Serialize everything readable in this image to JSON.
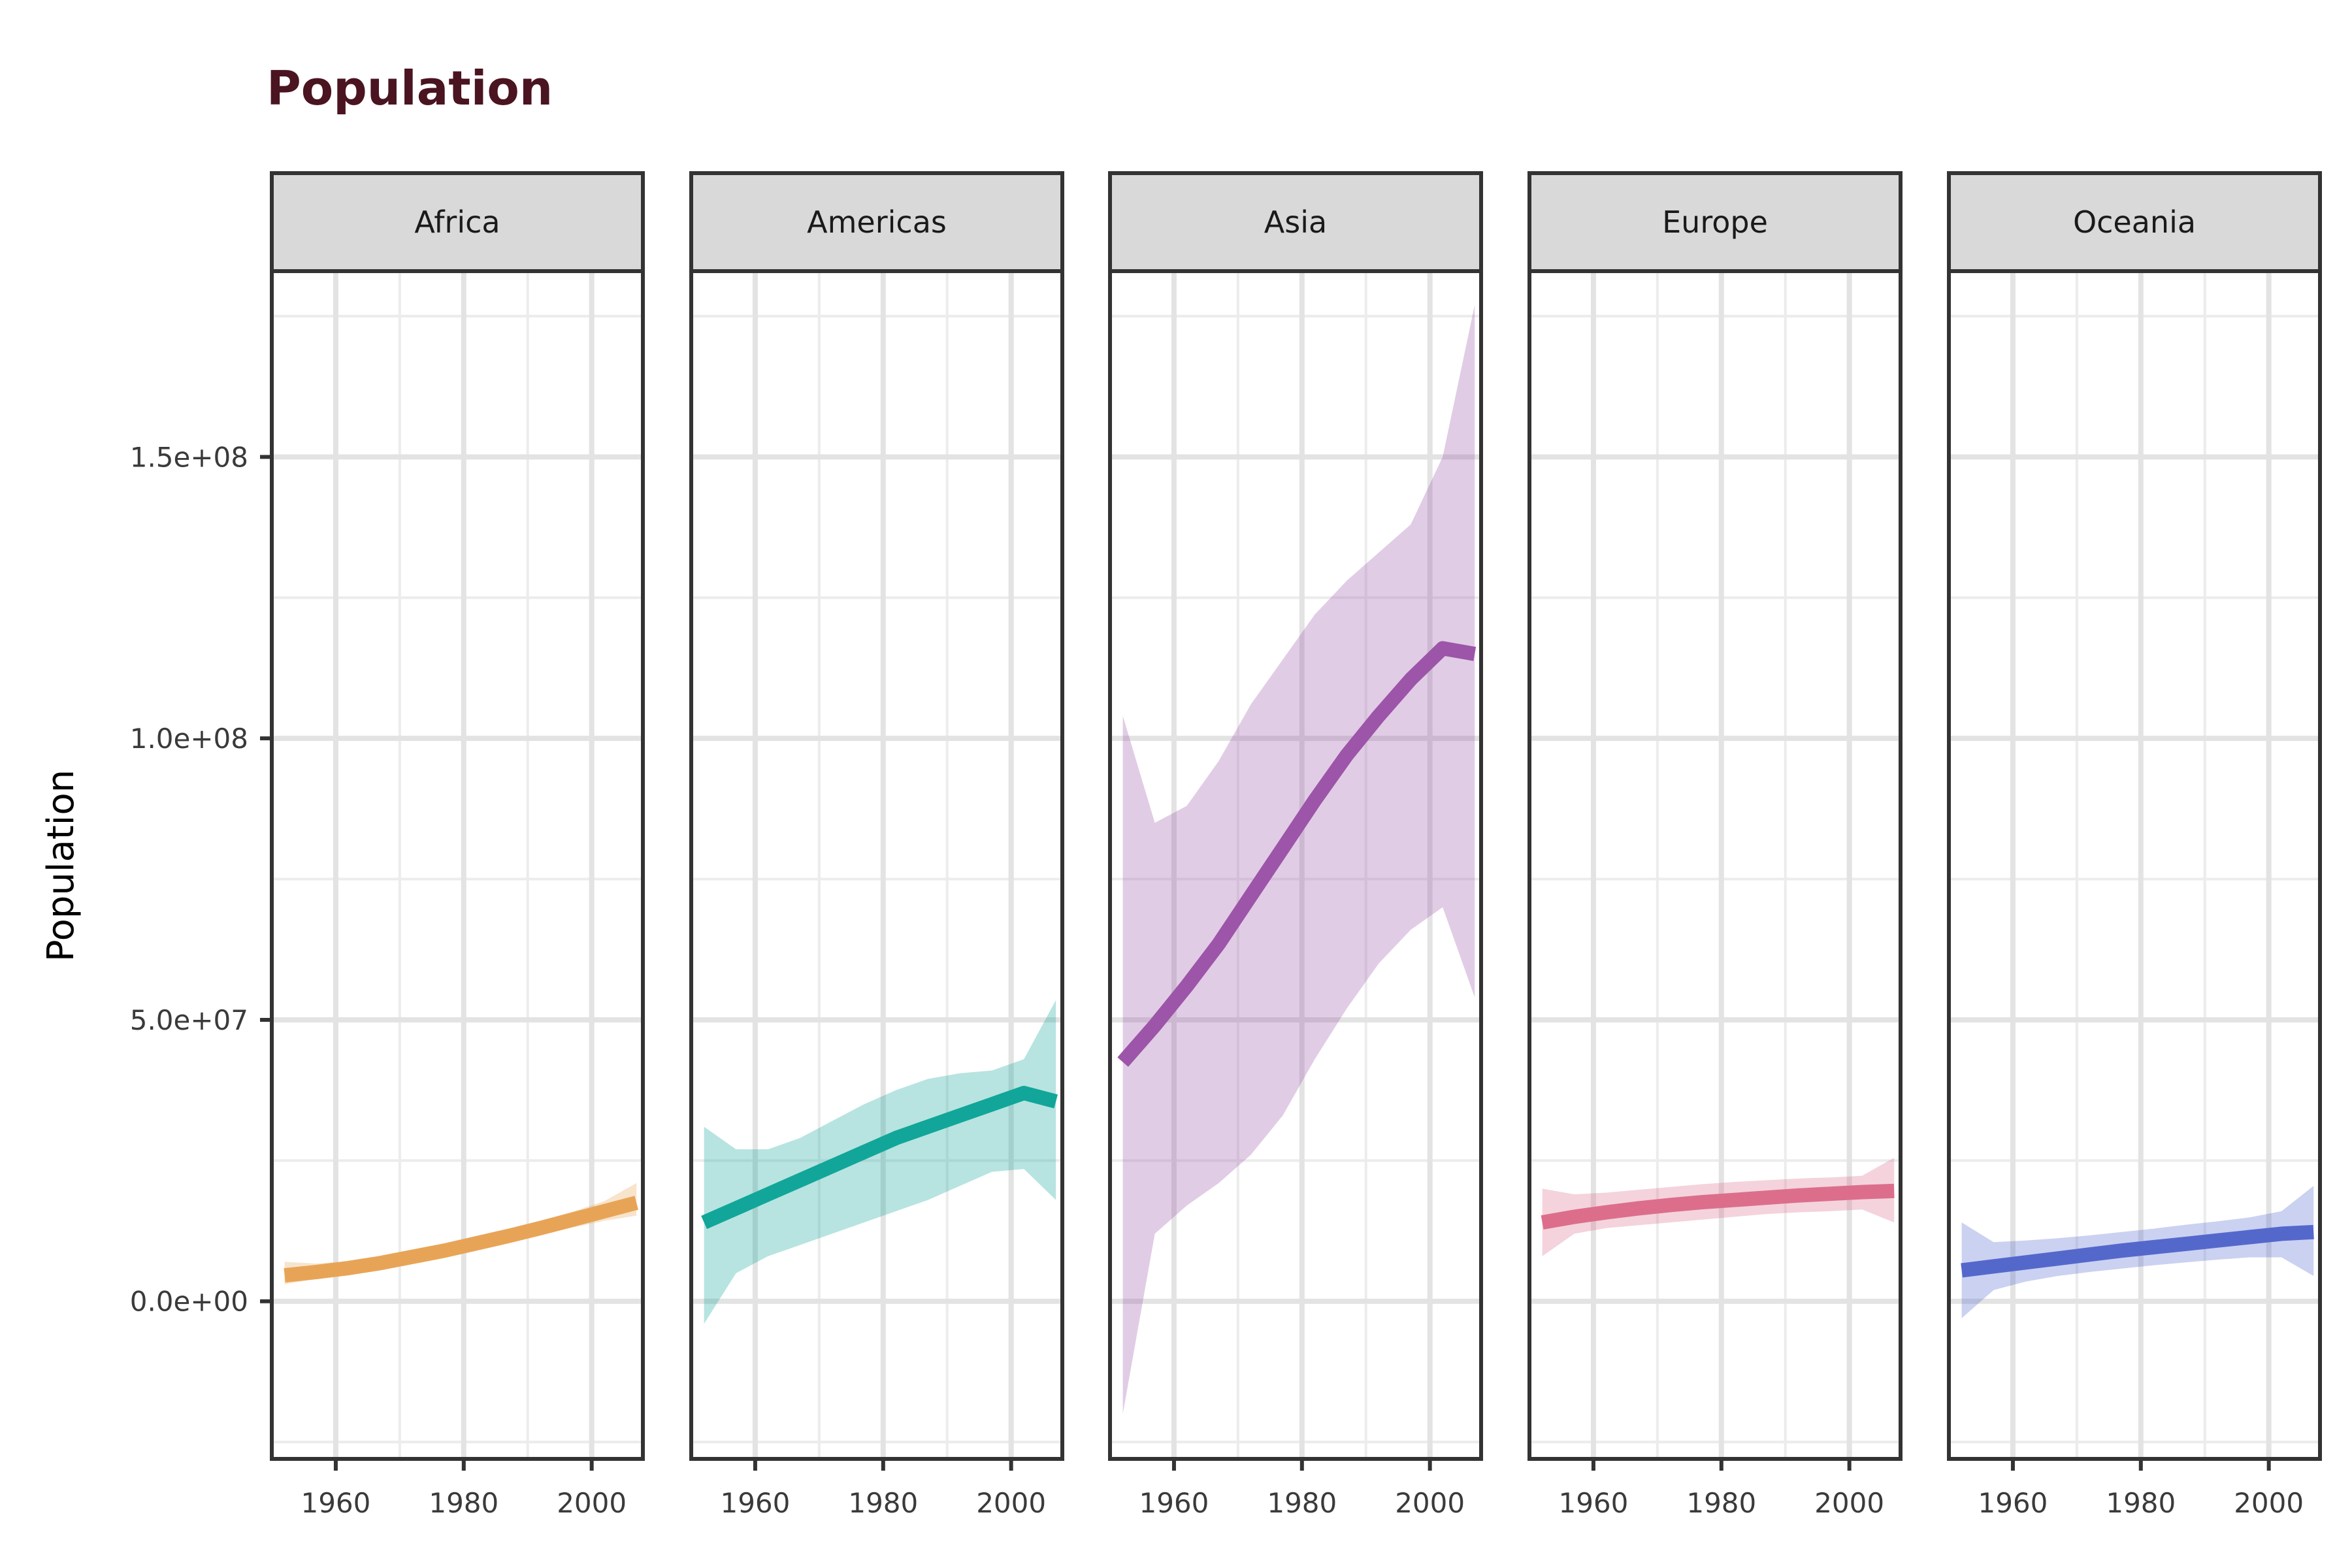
{
  "chart_data": {
    "type": "line",
    "title": "Population",
    "xlabel": "",
    "ylabel": "Population",
    "xlim": [
      1950,
      2008
    ],
    "ylim": [
      -28000000,
      183000000
    ],
    "x_ticks": [
      1960,
      1980,
      2000
    ],
    "x_tick_labels": [
      "1960",
      "1980",
      "2000"
    ],
    "x_minor_ticks": [
      1950,
      1970,
      1990
    ],
    "y_ticks": [
      0,
      50000000,
      100000000,
      150000000
    ],
    "y_tick_labels": [
      "0.0e+00",
      "5.0e+07",
      "1.0e+08",
      "1.5e+08"
    ],
    "y_minor_ticks": [
      -25000000,
      25000000,
      75000000,
      125000000,
      175000000
    ],
    "grid": true,
    "facets": [
      {
        "name": "Africa",
        "color": "#E8A456",
        "x": [
          1952,
          1957,
          1962,
          1967,
          1972,
          1977,
          1982,
          1987,
          1992,
          1997,
          2002,
          2007
        ],
        "fit": [
          4600000,
          5200000,
          5900000,
          6800000,
          7900000,
          9000000,
          10300000,
          11600000,
          13000000,
          14500000,
          16000000,
          17500000
        ],
        "lower": [
          3000000,
          4000000,
          4800000,
          5700000,
          6800000,
          7900000,
          9200000,
          10400000,
          11700000,
          13100000,
          14300000,
          15200000
        ],
        "upper": [
          7000000,
          6700000,
          7100000,
          7900000,
          9000000,
          10100000,
          11400000,
          12800000,
          14300000,
          15900000,
          17800000,
          21000000
        ]
      },
      {
        "name": "Americas",
        "color": "#11A699",
        "x": [
          1952,
          1957,
          1962,
          1967,
          1972,
          1977,
          1982,
          1987,
          1992,
          1997,
          2002,
          2007
        ],
        "fit": [
          14000000,
          16500000,
          19000000,
          21500000,
          24000000,
          26500000,
          29000000,
          31000000,
          33000000,
          35000000,
          37000000,
          35500000
        ],
        "lower": [
          -4000000,
          5000000,
          8000000,
          10000000,
          12000000,
          14000000,
          16000000,
          18000000,
          20500000,
          23000000,
          23500000,
          18000000
        ],
        "upper": [
          31000000,
          27000000,
          27000000,
          29000000,
          32000000,
          35000000,
          37500000,
          39500000,
          40500000,
          41000000,
          43000000,
          53500000
        ]
      },
      {
        "name": "Asia",
        "color": "#9C55A8",
        "x": [
          1952,
          1957,
          1962,
          1967,
          1972,
          1977,
          1982,
          1987,
          1992,
          1997,
          2002,
          2007
        ],
        "fit": [
          42500000,
          49000000,
          56000000,
          63500000,
          72000000,
          80500000,
          89000000,
          97000000,
          104000000,
          110500000,
          116000000,
          115000000
        ],
        "lower": [
          -20000000,
          12000000,
          17000000,
          21000000,
          26000000,
          33000000,
          43000000,
          52000000,
          60000000,
          66000000,
          70000000,
          54000000
        ],
        "upper": [
          104000000,
          85000000,
          88000000,
          96000000,
          106000000,
          114000000,
          122000000,
          128000000,
          133000000,
          138000000,
          150000000,
          177000000
        ]
      },
      {
        "name": "Europe",
        "color": "#DC6E8C",
        "x": [
          1952,
          1957,
          1962,
          1967,
          1972,
          1977,
          1982,
          1987,
          1992,
          1997,
          2002,
          2007
        ],
        "fit": [
          14000000,
          15000000,
          15800000,
          16500000,
          17100000,
          17600000,
          18000000,
          18400000,
          18800000,
          19100000,
          19400000,
          19600000
        ],
        "lower": [
          8000000,
          12000000,
          13000000,
          13500000,
          14000000,
          14500000,
          15000000,
          15500000,
          15800000,
          16000000,
          16300000,
          14000000
        ],
        "upper": [
          20000000,
          19000000,
          19300000,
          19800000,
          20300000,
          20800000,
          21200000,
          21500000,
          21800000,
          22000000,
          22300000,
          25500000
        ]
      },
      {
        "name": "Oceania",
        "color": "#5468CC",
        "x": [
          1952,
          1957,
          1962,
          1967,
          1972,
          1977,
          1982,
          1987,
          1992,
          1997,
          2002,
          2007
        ],
        "fit": [
          5500000,
          6200000,
          6900000,
          7600000,
          8300000,
          9000000,
          9600000,
          10200000,
          10800000,
          11400000,
          12000000,
          12300000
        ],
        "lower": [
          -3000000,
          2000000,
          3500000,
          4500000,
          5200000,
          5800000,
          6400000,
          6900000,
          7400000,
          7800000,
          7800000,
          4500000
        ],
        "upper": [
          14000000,
          10500000,
          10800000,
          11200000,
          11700000,
          12300000,
          12900000,
          13600000,
          14200000,
          14900000,
          16000000,
          20500000
        ]
      }
    ]
  }
}
